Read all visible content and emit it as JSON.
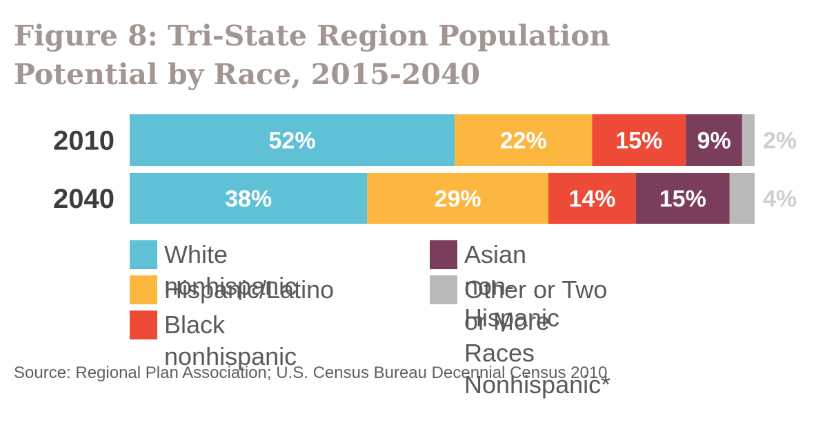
{
  "title": {
    "line1": "Figure 8: Tri-State Region Population",
    "line2": "Potential by Race, 2015-2040"
  },
  "source": "Source: Regional Plan Association; U.S. Census Bureau Decennial Census 2010",
  "chart_data": {
    "type": "bar",
    "orientation": "horizontal",
    "stacked": true,
    "categories": [
      "2010",
      "2040"
    ],
    "series": [
      {
        "name": "White nonhispanic",
        "color": "#5fc1d6",
        "values": [
          52,
          38
        ],
        "labels": [
          "52%",
          "38%"
        ]
      },
      {
        "name": "Hispanic/Latino",
        "color": "#fbb73f",
        "values": [
          22,
          29
        ],
        "labels": [
          "22%",
          "29%"
        ]
      },
      {
        "name": "Black nonhispanic",
        "color": "#ee4a38",
        "values": [
          15,
          14
        ],
        "labels": [
          "15%",
          "14%"
        ]
      },
      {
        "name": "Asian non-Hispanic",
        "color": "#7a3d5b",
        "values": [
          9,
          15
        ],
        "labels": [
          "9%",
          "15%"
        ]
      },
      {
        "name": "Other or Two or More Races Nonhispanic*",
        "color": "#b9b9b9",
        "values": [
          2,
          4
        ],
        "labels": [
          "2%",
          "4%"
        ]
      }
    ],
    "xlim": [
      0,
      100
    ],
    "grid": false,
    "legend_position": "bottom"
  },
  "legend": [
    {
      "lines": [
        "White nonhispanic"
      ],
      "color": "#5fc1d6"
    },
    {
      "lines": [
        "Hispanic/Latino"
      ],
      "color": "#fbb73f"
    },
    {
      "lines": [
        "Black nonhispanic"
      ],
      "color": "#ee4a38"
    },
    {
      "lines": [
        "Asian non-Hispanic"
      ],
      "color": "#7a3d5b"
    },
    {
      "lines": [
        "Other or Two or More",
        "Races Nonhispanic*"
      ],
      "color": "#b9b9b9"
    }
  ]
}
